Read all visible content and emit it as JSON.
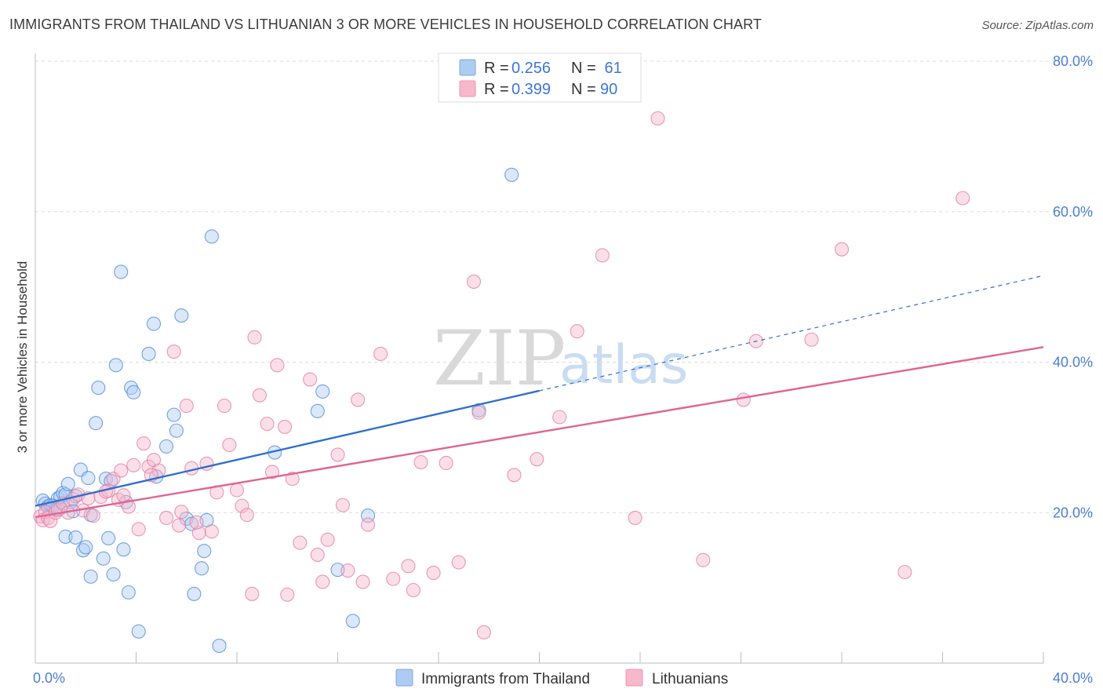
{
  "title": "IMMIGRANTS FROM THAILAND VS LITHUANIAN 3 OR MORE VEHICLES IN HOUSEHOLD CORRELATION CHART",
  "source": "Source: ZipAtlas.com",
  "watermark": {
    "zip": "ZIP",
    "atlas": "atlas"
  },
  "legend": {
    "rows": [
      {
        "r_label": "R = ",
        "r_value": "0.256",
        "n_label": "N = ",
        "n_value": " 61",
        "color": "#aecbf2"
      },
      {
        "r_label": "R = ",
        "r_value": "0.399",
        "n_label": "N = ",
        "n_value": "90",
        "color": "#f7b8cc"
      }
    ]
  },
  "bottom_legend": [
    {
      "label": "Immigrants from Thailand",
      "color": "#aecbf2"
    },
    {
      "label": "Lithuanians",
      "color": "#f7b8cc"
    }
  ],
  "chart_data": {
    "type": "scatter",
    "title": "IMMIGRANTS FROM THAILAND VS LITHUANIAN 3 OR MORE VEHICLES IN HOUSEHOLD CORRELATION CHART",
    "xlabel": "",
    "ylabel": "3 or more Vehicles in Household",
    "xlim": [
      0,
      40
    ],
    "ylim": [
      0,
      80
    ],
    "x_tick_labels": {
      "left": "0.0%",
      "right": "40.0%"
    },
    "y_ticks": [
      {
        "value": 20,
        "label": "20.0%"
      },
      {
        "value": 40,
        "label": "40.0%"
      },
      {
        "value": 60,
        "label": "60.0%"
      },
      {
        "value": 80,
        "label": "80.0%"
      }
    ],
    "grid": true,
    "legend_position": "top-center",
    "series": [
      {
        "name": "Immigrants from Thailand",
        "color": "#4a86d8",
        "fill": "#aecbf2",
        "line_color": "#2f6fd0",
        "trend": {
          "x": [
            0.0,
            20.0
          ],
          "y": [
            20.9,
            36.2
          ],
          "dashed_to": [
            40.0,
            51.5
          ]
        },
        "points": [
          [
            0.3,
            21.6
          ],
          [
            0.4,
            21.2
          ],
          [
            0.5,
            20.8
          ],
          [
            0.6,
            21.0
          ],
          [
            0.8,
            20.4
          ],
          [
            0.9,
            21.9
          ],
          [
            1.0,
            22.1
          ],
          [
            1.1,
            22.6
          ],
          [
            1.2,
            22.4
          ],
          [
            1.3,
            23.8
          ],
          [
            1.4,
            21.4
          ],
          [
            1.5,
            20.2
          ],
          [
            1.6,
            22.2
          ],
          [
            1.8,
            25.7
          ],
          [
            2.1,
            24.6
          ],
          [
            2.2,
            19.7
          ],
          [
            2.4,
            31.9
          ],
          [
            2.5,
            36.6
          ],
          [
            2.8,
            24.5
          ],
          [
            3.0,
            24.2
          ],
          [
            3.2,
            39.6
          ],
          [
            3.4,
            52.0
          ],
          [
            3.6,
            21.4
          ],
          [
            3.8,
            36.6
          ],
          [
            3.9,
            36.0
          ],
          [
            4.5,
            41.1
          ],
          [
            4.7,
            45.1
          ],
          [
            4.8,
            24.8
          ],
          [
            5.2,
            28.8
          ],
          [
            5.5,
            33.0
          ],
          [
            5.6,
            30.9
          ],
          [
            5.8,
            46.2
          ],
          [
            6.0,
            19.2
          ],
          [
            6.2,
            18.5
          ],
          [
            6.6,
            12.6
          ],
          [
            6.8,
            19.0
          ],
          [
            7.0,
            56.7
          ],
          [
            9.5,
            28.0
          ],
          [
            11.2,
            33.5
          ],
          [
            11.4,
            36.1
          ],
          [
            12.0,
            12.4
          ],
          [
            12.6,
            5.6
          ],
          [
            13.2,
            19.6
          ],
          [
            17.6,
            33.6
          ],
          [
            18.9,
            64.9
          ],
          [
            1.2,
            16.8
          ],
          [
            1.6,
            16.7
          ],
          [
            1.9,
            15.0
          ],
          [
            2.0,
            15.4
          ],
          [
            2.2,
            11.5
          ],
          [
            2.7,
            13.9
          ],
          [
            2.9,
            16.6
          ],
          [
            3.1,
            11.8
          ],
          [
            3.5,
            15.1
          ],
          [
            3.7,
            9.4
          ],
          [
            4.1,
            4.2
          ],
          [
            6.3,
            9.2
          ],
          [
            6.7,
            14.9
          ],
          [
            7.3,
            2.3
          ],
          [
            1.0,
            20.6
          ],
          [
            0.7,
            20.9
          ]
        ]
      },
      {
        "name": "Lithuanians",
        "color": "#e27aa0",
        "fill": "#f7b8cc",
        "line_color": "#e06593",
        "trend": {
          "x": [
            0.0,
            40.0
          ],
          "y": [
            19.4,
            42.0
          ]
        },
        "points": [
          [
            0.2,
            19.5
          ],
          [
            0.3,
            19.0
          ],
          [
            0.4,
            20.1
          ],
          [
            0.5,
            19.3
          ],
          [
            0.6,
            18.9
          ],
          [
            0.8,
            20.0
          ],
          [
            0.9,
            20.4
          ],
          [
            1.1,
            21.2
          ],
          [
            1.3,
            20.0
          ],
          [
            1.5,
            21.8
          ],
          [
            1.7,
            22.4
          ],
          [
            1.9,
            20.3
          ],
          [
            2.1,
            21.9
          ],
          [
            2.3,
            19.6
          ],
          [
            2.6,
            22.1
          ],
          [
            2.9,
            22.9
          ],
          [
            3.1,
            24.5
          ],
          [
            3.3,
            21.7
          ],
          [
            3.5,
            22.3
          ],
          [
            3.7,
            20.8
          ],
          [
            3.9,
            26.3
          ],
          [
            4.1,
            17.8
          ],
          [
            4.3,
            29.2
          ],
          [
            4.5,
            26.1
          ],
          [
            4.7,
            27.0
          ],
          [
            4.9,
            25.6
          ],
          [
            5.2,
            19.3
          ],
          [
            5.5,
            41.4
          ],
          [
            5.7,
            18.3
          ],
          [
            6.0,
            34.2
          ],
          [
            6.2,
            25.9
          ],
          [
            6.5,
            17.3
          ],
          [
            6.8,
            26.5
          ],
          [
            7.2,
            22.7
          ],
          [
            7.5,
            34.2
          ],
          [
            7.7,
            29.0
          ],
          [
            8.0,
            23.0
          ],
          [
            8.2,
            20.9
          ],
          [
            8.4,
            19.7
          ],
          [
            8.7,
            43.3
          ],
          [
            8.9,
            35.6
          ],
          [
            9.2,
            31.8
          ],
          [
            9.6,
            39.6
          ],
          [
            9.9,
            31.4
          ],
          [
            10.2,
            24.5
          ],
          [
            10.5,
            16.0
          ],
          [
            10.9,
            37.7
          ],
          [
            11.2,
            14.4
          ],
          [
            11.6,
            16.4
          ],
          [
            12.0,
            27.7
          ],
          [
            12.4,
            12.3
          ],
          [
            12.8,
            35.0
          ],
          [
            13.2,
            18.4
          ],
          [
            13.7,
            41.1
          ],
          [
            14.2,
            11.2
          ],
          [
            14.8,
            12.9
          ],
          [
            15.3,
            26.7
          ],
          [
            15.8,
            12.0
          ],
          [
            16.3,
            26.6
          ],
          [
            16.8,
            13.4
          ],
          [
            17.4,
            50.7
          ],
          [
            17.6,
            33.3
          ],
          [
            19.0,
            25.0
          ],
          [
            19.9,
            27.1
          ],
          [
            20.8,
            32.7
          ],
          [
            21.5,
            44.1
          ],
          [
            22.5,
            54.2
          ],
          [
            23.8,
            19.3
          ],
          [
            24.7,
            72.4
          ],
          [
            26.5,
            13.7
          ],
          [
            28.1,
            35.0
          ],
          [
            28.6,
            42.8
          ],
          [
            30.8,
            43.0
          ],
          [
            32.0,
            55.0
          ],
          [
            34.5,
            12.1
          ],
          [
            36.8,
            61.8
          ],
          [
            5.8,
            20.1
          ],
          [
            6.4,
            18.7
          ],
          [
            7.0,
            17.5
          ],
          [
            8.6,
            9.2
          ],
          [
            9.4,
            25.4
          ],
          [
            10.0,
            9.1
          ],
          [
            11.4,
            10.8
          ],
          [
            13.0,
            10.8
          ],
          [
            15.0,
            9.7
          ],
          [
            17.8,
            4.1
          ],
          [
            12.2,
            21.0
          ],
          [
            4.6,
            25.0
          ],
          [
            3.4,
            25.6
          ],
          [
            2.8,
            22.8
          ]
        ]
      }
    ]
  }
}
